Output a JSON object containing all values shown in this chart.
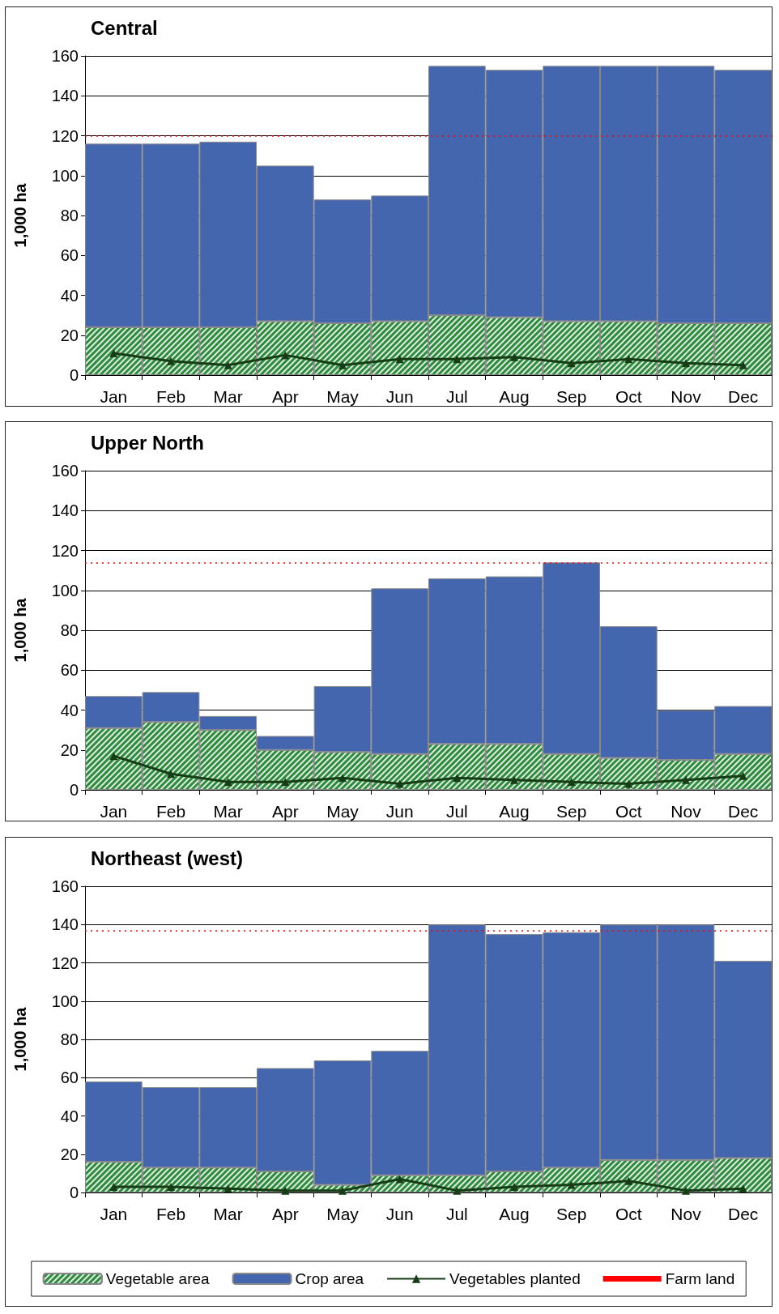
{
  "chart_data": [
    {
      "type": "bar",
      "title": "Central",
      "ylabel": "1,000 ha",
      "categories": [
        "Jan",
        "Feb",
        "Mar",
        "Apr",
        "May",
        "Jun",
        "Jul",
        "Aug",
        "Sep",
        "Oct",
        "Nov",
        "Dec"
      ],
      "stacked": true,
      "ylim": [
        0,
        160
      ],
      "yticks": [
        0,
        20,
        40,
        60,
        80,
        100,
        120,
        140,
        160
      ],
      "grid": "y",
      "legend": false,
      "series": [
        {
          "color": "#2e8b3e",
          "values": [
            24,
            24,
            24,
            27,
            26,
            27,
            30,
            29,
            27,
            27,
            26,
            26
          ]
        },
        {
          "color": "#4466ae",
          "values": [
            92,
            92,
            93,
            78,
            62,
            63,
            125,
            124,
            128,
            128,
            129,
            127
          ]
        },
        {
          "type": "line",
          "color": "#163d16",
          "marker": "triangle",
          "values": [
            11,
            7,
            5,
            10,
            5,
            8,
            8,
            9,
            6,
            8,
            6,
            5
          ]
        }
      ],
      "ref_lines": [
        {
          "axis": "y",
          "value": 120,
          "color": "#ff0000",
          "line_style": "dotted"
        }
      ]
    },
    {
      "type": "bar",
      "title": "Upper North",
      "ylabel": "1,000 ha",
      "categories": [
        "Jan",
        "Feb",
        "Mar",
        "Apr",
        "May",
        "Jun",
        "Jul",
        "Aug",
        "Sep",
        "Oct",
        "Nov",
        "Dec"
      ],
      "stacked": true,
      "ylim": [
        0,
        160
      ],
      "yticks": [
        0,
        20,
        40,
        60,
        80,
        100,
        120,
        140,
        160
      ],
      "grid": "y",
      "legend": false,
      "series": [
        {
          "color": "#2e8b3e",
          "values": [
            31,
            34,
            30,
            20,
            19,
            18,
            23,
            23,
            18,
            16,
            15,
            18
          ]
        },
        {
          "color": "#4466ae",
          "values": [
            16,
            15,
            7,
            7,
            33,
            83,
            83,
            84,
            96,
            66,
            25,
            24
          ]
        },
        {
          "type": "line",
          "color": "#163d16",
          "marker": "triangle",
          "values": [
            17,
            8,
            4,
            4,
            6,
            3,
            6,
            5,
            4,
            3,
            5,
            7
          ]
        }
      ],
      "ref_lines": [
        {
          "axis": "y",
          "value": 114,
          "color": "#ff0000",
          "line_style": "dotted"
        }
      ]
    },
    {
      "type": "bar",
      "title": "Northeast (west)",
      "ylabel": "1,000 ha",
      "categories": [
        "Jan",
        "Feb",
        "Mar",
        "Apr",
        "May",
        "Jun",
        "Jul",
        "Aug",
        "Sep",
        "Oct",
        "Nov",
        "Dec"
      ],
      "stacked": true,
      "ylim": [
        0,
        160
      ],
      "yticks": [
        0,
        20,
        40,
        60,
        80,
        100,
        120,
        140,
        160
      ],
      "grid": "y",
      "legend": "bottom",
      "series": [
        {
          "name": "Vegetable area",
          "color": "#2e8b3e",
          "values": [
            16,
            13,
            13,
            11,
            4,
            9,
            9,
            11,
            13,
            17,
            17,
            18
          ]
        },
        {
          "name": "Crop area",
          "color": "#4466ae",
          "values": [
            42,
            42,
            42,
            54,
            65,
            65,
            131,
            124,
            123,
            123,
            123,
            103
          ]
        },
        {
          "name": "Vegetables planted",
          "type": "line",
          "color": "#163d16",
          "marker": "triangle",
          "values": [
            3,
            3,
            2,
            1,
            1,
            7,
            1,
            3,
            4,
            6,
            1,
            2
          ]
        }
      ],
      "ref_lines": [
        {
          "axis": "y",
          "value": 137,
          "label": "Farm land",
          "color": "#ff0000",
          "line_style": "dotted"
        }
      ]
    }
  ]
}
